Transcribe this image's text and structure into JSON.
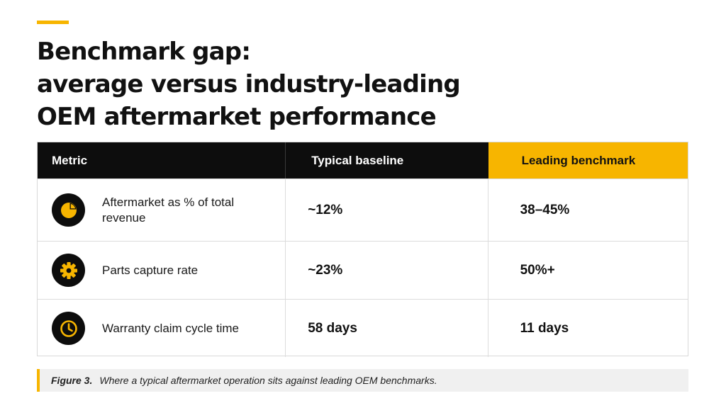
{
  "title_lines": [
    "Benchmark gap:",
    "average versus industry-leading",
    "OEM aftermarket performance"
  ],
  "table": {
    "headers": {
      "metric": "Metric",
      "baseline": "Typical baseline",
      "leading": "Leading benchmark"
    },
    "rows": [
      {
        "icon": "pie-chart-icon",
        "label": "Aftermarket as % of total revenue",
        "baseline": "~12%",
        "leading": "38–45%"
      },
      {
        "icon": "gear-icon",
        "label": "Parts capture rate",
        "baseline": "~23%",
        "leading": "50%+"
      },
      {
        "icon": "clock-icon",
        "label": "Warranty claim cycle time",
        "baseline": "58 days",
        "leading": "11 days"
      }
    ]
  },
  "caption": {
    "label": "Figure 3.",
    "text": "Where a typical aftermarket operation sits against leading OEM benchmarks."
  },
  "colors": {
    "accent": "#F7B500",
    "header_dark": "#0d0d0d"
  }
}
